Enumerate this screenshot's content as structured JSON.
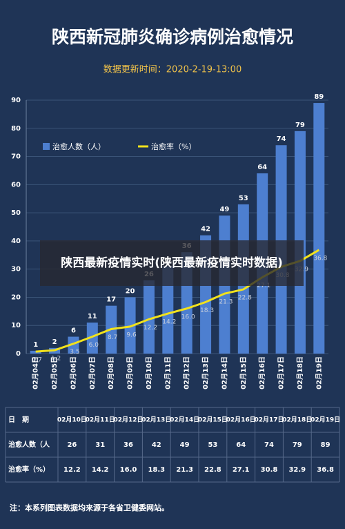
{
  "chart_data": {
    "type": "bar_line",
    "title": "陕西新冠肺炎确诊病例治愈情况",
    "subtitle": "数据更新时间：2020-2-19-13:00",
    "categories": [
      "02月04日",
      "02月05日",
      "02月06日",
      "02月07日",
      "02月08日",
      "02月09日",
      "02月10日",
      "02月11日",
      "02月12日",
      "02月13日",
      "02月14日",
      "02月15日",
      "02月16日",
      "02月17日",
      "02月18日",
      "02月19日"
    ],
    "series": [
      {
        "name": "治愈人数（人）",
        "color": "#4d7fd0",
        "values": [
          1,
          2,
          6,
          11,
          17,
          20,
          26,
          31,
          36,
          42,
          49,
          53,
          64,
          74,
          79,
          89
        ]
      },
      {
        "name": "治愈率（%）",
        "color": "#f2e21c",
        "values": [
          0.7,
          1.2,
          3.5,
          6.0,
          8.7,
          9.6,
          12.2,
          14.2,
          16.0,
          18.3,
          21.3,
          22.8,
          27.1,
          30.8,
          32.9,
          36.8
        ],
        "value_labels": [
          "0.7",
          "1.2",
          "3.5",
          "6.0",
          "8.7",
          "9.6",
          "12.2",
          "14.2",
          "16.0",
          "18.3",
          "21.3",
          "22.8",
          "27.1",
          "30.8",
          "32.9",
          "36.8"
        ]
      }
    ],
    "ylim": [
      0,
      90
    ],
    "yticks": [
      0,
      10,
      20,
      30,
      40,
      50,
      60,
      70,
      80,
      90
    ],
    "grid": true
  },
  "table": {
    "header": [
      "日　期",
      "02月10日",
      "02月11日",
      "02月12日",
      "02月13日",
      "02月14日",
      "02月15日",
      "02月16日",
      "02月17日",
      "02月18日",
      "02月19日"
    ],
    "rows": [
      [
        "治愈人数（人",
        "26",
        "31",
        "36",
        "42",
        "49",
        "53",
        "64",
        "74",
        "79",
        "89"
      ],
      [
        "治愈率（%）",
        "12.2",
        "14.2",
        "16.0",
        "18.3",
        "21.3",
        "22.8",
        "27.1",
        "30.8",
        "32.9",
        "36.8"
      ]
    ]
  },
  "note": "注：本系列图表数据均来源于各省卫健委网站。",
  "overlay": "陕西最新疫情实时(陕西最新疫情实时数据)"
}
